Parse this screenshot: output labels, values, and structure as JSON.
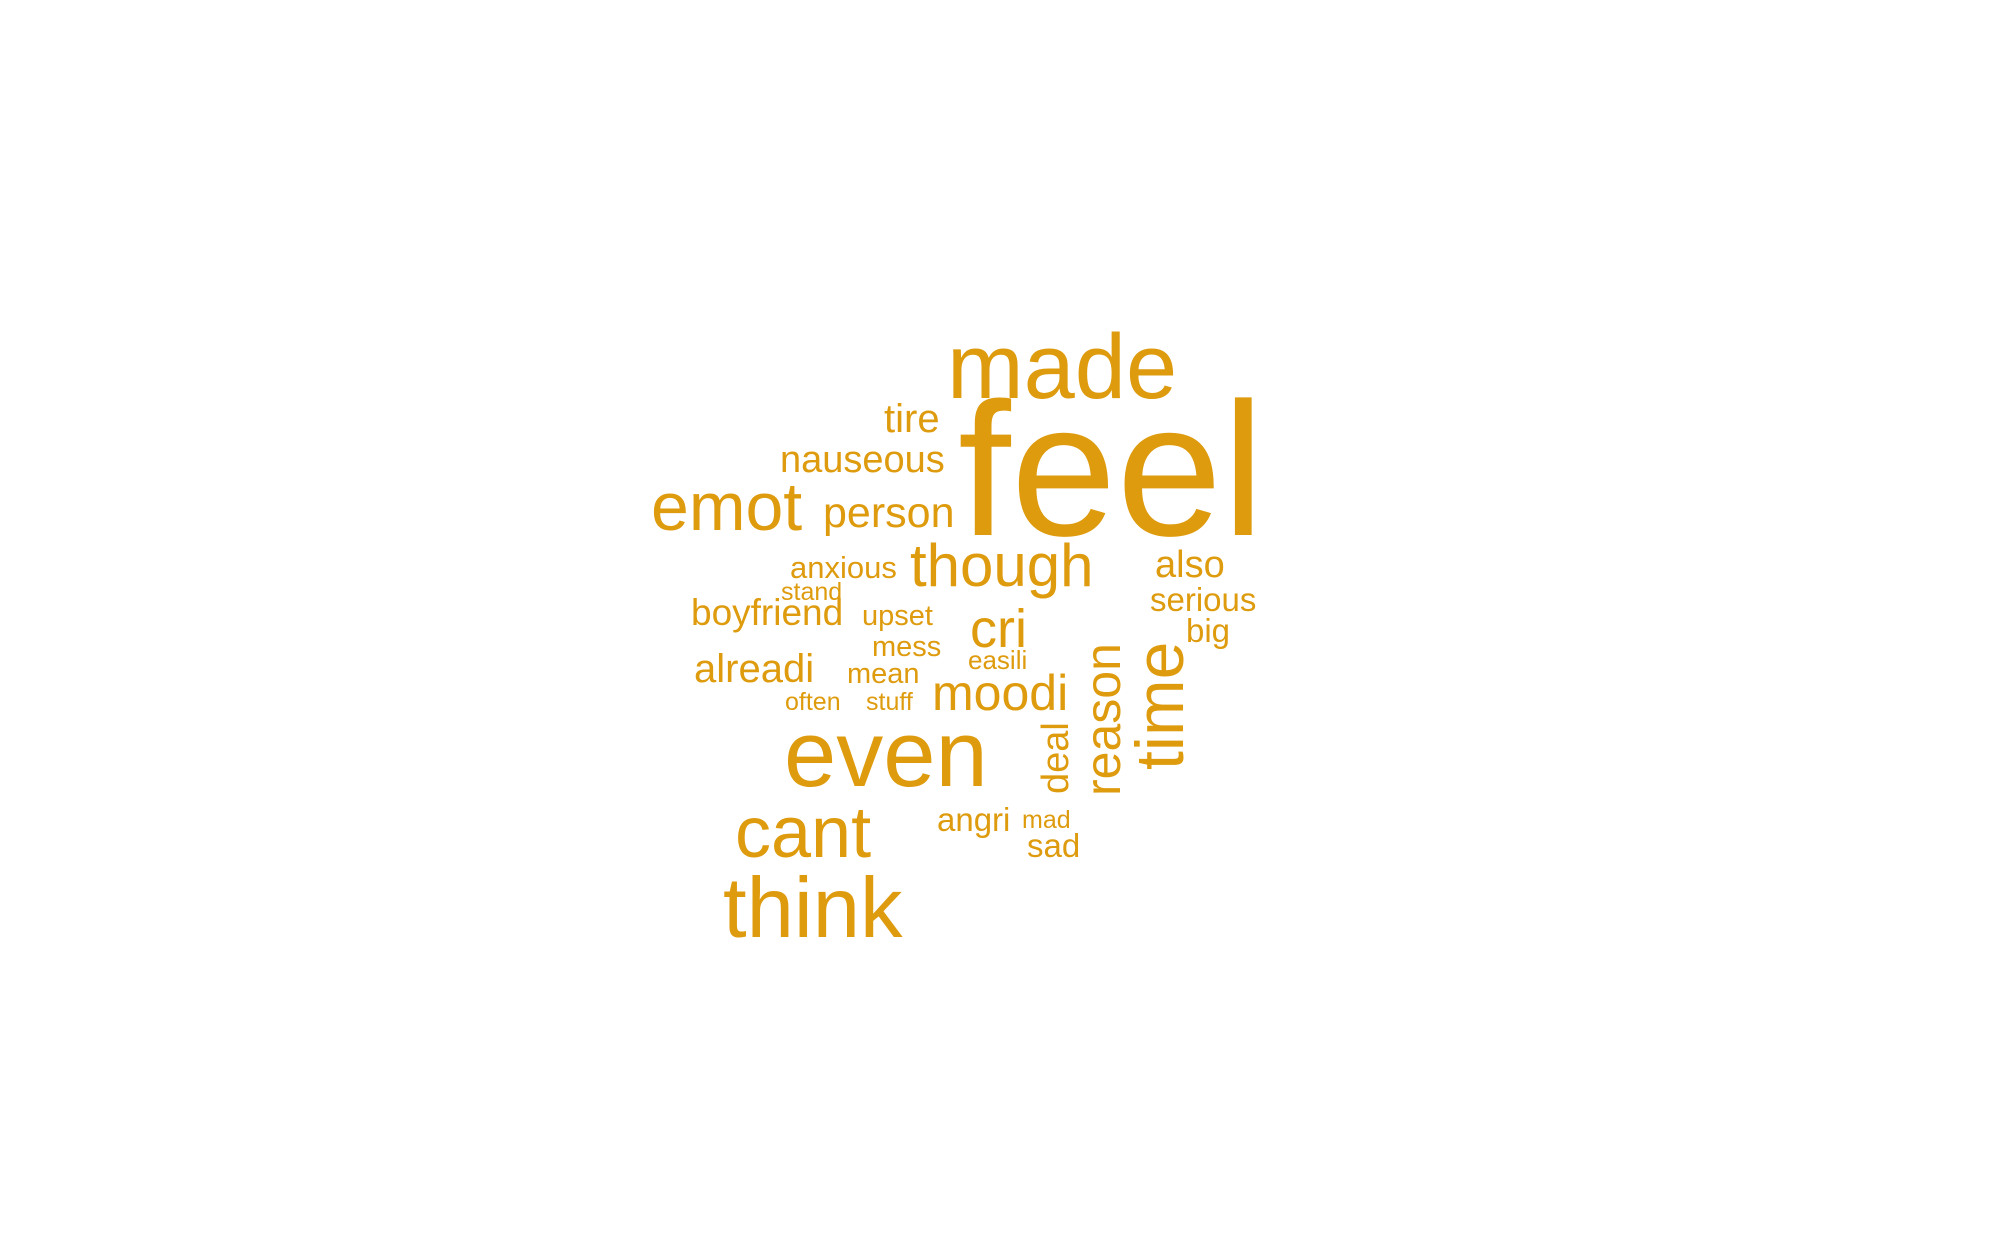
{
  "word_color": "#DE9B0E",
  "background_color": "#FFFFFF",
  "words": [
    "feel",
    "made",
    "even",
    "think",
    "cant",
    "emot",
    "though",
    "time",
    "reason",
    "cri",
    "moodi",
    "person",
    "nauseous",
    "tire",
    "also",
    "serious",
    "big",
    "alreadi",
    "boyfriend",
    "anxious",
    "stand",
    "upset",
    "mess",
    "mean",
    "easili",
    "often",
    "stuff",
    "deal",
    "angri",
    "mad",
    "sad"
  ]
}
